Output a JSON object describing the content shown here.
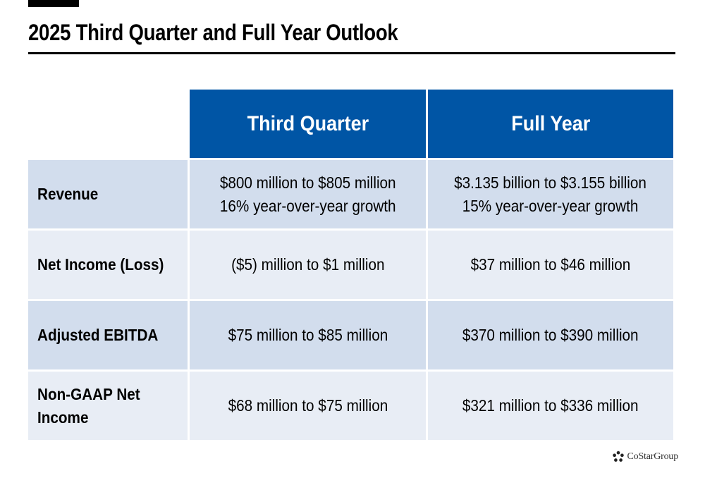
{
  "page": {
    "title": "2025 Third Quarter and Full Year Outlook"
  },
  "table": {
    "columns": [
      "Third Quarter",
      "Full Year"
    ],
    "rows": [
      {
        "label": "Revenue",
        "third_quarter": [
          "$800 million to $805 million",
          "16% year-over-year growth"
        ],
        "full_year": [
          "$3.135 billion to $3.155 billion",
          "15% year-over-year growth"
        ]
      },
      {
        "label": "Net Income (Loss)",
        "third_quarter": [
          "($5) million to $1 million"
        ],
        "full_year": [
          "$37 million to $46 million"
        ]
      },
      {
        "label": "Adjusted EBITDA",
        "third_quarter": [
          "$75 million to $85 million"
        ],
        "full_year": [
          "$370 million to $390 million"
        ]
      },
      {
        "label_lines": [
          "Non-GAAP Net",
          "Income"
        ],
        "third_quarter": [
          "$68 million to $75 million"
        ],
        "full_year": [
          "$321 million to $336 million"
        ]
      }
    ]
  },
  "colors": {
    "header_blue": "#0055a5",
    "row_dark": "#d2dded",
    "row_light": "#e8edf5"
  },
  "logo": {
    "text": "CoStarGroup",
    "icon": "costar-logo-icon"
  }
}
